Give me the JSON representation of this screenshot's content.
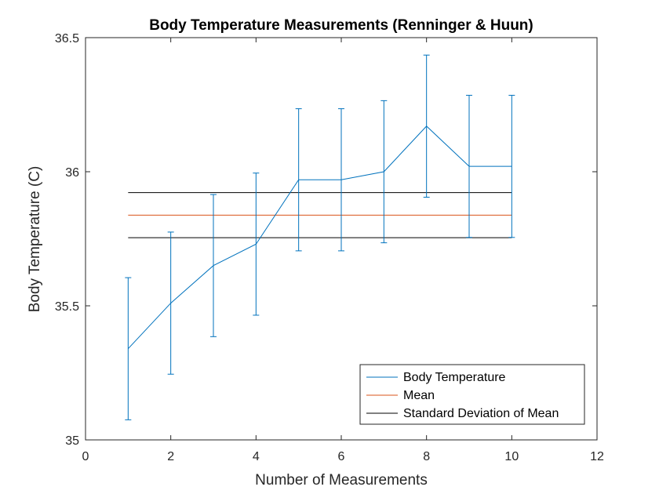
{
  "chart_data": {
    "type": "line",
    "title": "Body Temperature Measurements (Renninger & Huun)",
    "xlabel": "Number of Measurements",
    "ylabel": "Body Temperature (C)",
    "xlim": [
      0,
      12
    ],
    "ylim": [
      35,
      36.5
    ],
    "xticks": [
      0,
      2,
      4,
      6,
      8,
      10,
      12
    ],
    "yticks": [
      35,
      35.5,
      36,
      36.5
    ],
    "xtick_labels": [
      "0",
      "2",
      "4",
      "6",
      "8",
      "10",
      "12"
    ],
    "ytick_labels": [
      "35",
      "35.5",
      "36",
      "36.5"
    ],
    "grid": false,
    "legend_position": "bottom-right",
    "series": [
      {
        "name": "Body Temperature",
        "color": "#0072BD",
        "x": [
          1,
          2,
          3,
          4,
          5,
          6,
          7,
          8,
          9,
          10
        ],
        "y": [
          35.34,
          35.51,
          35.65,
          35.73,
          35.97,
          35.97,
          36.0,
          36.17,
          36.02,
          36.02
        ],
        "error": [
          0.265,
          0.265,
          0.265,
          0.265,
          0.265,
          0.265,
          0.265,
          0.265,
          0.265,
          0.265
        ]
      },
      {
        "name": "Mean",
        "color": "#D95319",
        "x": [
          1,
          10
        ],
        "y": [
          35.838,
          35.838
        ]
      },
      {
        "name": "Standard Deviation of Mean",
        "color": "#000000",
        "x": [
          1,
          10
        ],
        "y_upper": 35.922,
        "y_lower": 35.754
      }
    ]
  }
}
